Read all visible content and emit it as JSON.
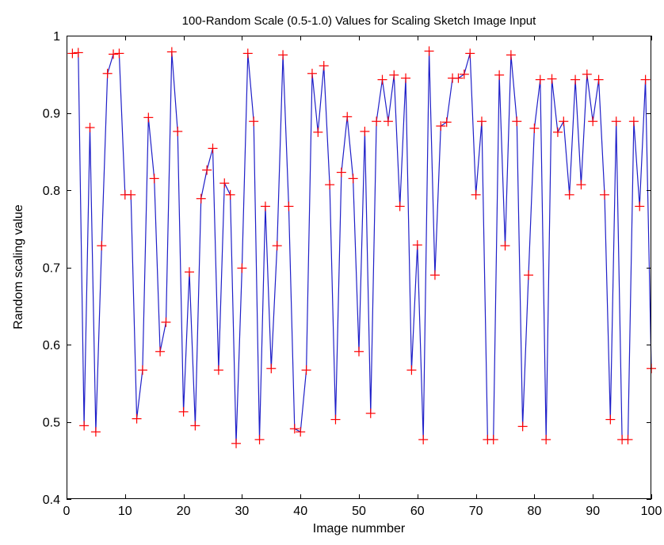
{
  "chart_data": {
    "type": "line",
    "title": "100-Random Scale (0.5-1.0) Values for Scaling  Sketch Image Input",
    "xlabel": "Image nummber",
    "ylabel": "Random scaling value",
    "xlim": [
      0,
      100
    ],
    "ylim": [
      0.4,
      1.0
    ],
    "xticks": [
      0,
      10,
      20,
      30,
      40,
      50,
      60,
      70,
      80,
      90,
      100
    ],
    "yticks": [
      0.4,
      0.5,
      0.6,
      0.7,
      0.8,
      0.9,
      1.0
    ],
    "xtick_labels": [
      "0",
      "10",
      "20",
      "30",
      "40",
      "50",
      "60",
      "70",
      "80",
      "90",
      "100"
    ],
    "ytick_labels": [
      "0.4",
      "0.5",
      "0.6",
      "0.7",
      "0.8",
      "0.9",
      "1"
    ],
    "grid": false,
    "series": [
      {
        "line_color": "#1f1fc8",
        "marker": "+",
        "marker_color": "#ff0000",
        "x": [
          1,
          2,
          3,
          4,
          5,
          6,
          7,
          8,
          9,
          10,
          11,
          12,
          13,
          14,
          15,
          16,
          17,
          18,
          19,
          20,
          21,
          22,
          23,
          24,
          25,
          26,
          27,
          28,
          29,
          30,
          31,
          32,
          33,
          34,
          35,
          36,
          37,
          38,
          39,
          40,
          41,
          42,
          43,
          44,
          45,
          46,
          47,
          48,
          49,
          50,
          51,
          52,
          53,
          54,
          55,
          56,
          57,
          58,
          59,
          60,
          61,
          62,
          63,
          64,
          65,
          66,
          67,
          68,
          69,
          70,
          71,
          72,
          73,
          74,
          75,
          76,
          77,
          78,
          79,
          80,
          81,
          82,
          83,
          84,
          85,
          86,
          87,
          88,
          89,
          90,
          91,
          92,
          93,
          94,
          95,
          96,
          97,
          98,
          99,
          100
        ],
        "values": [
          0.977,
          0.978,
          0.495,
          0.881,
          0.487,
          0.728,
          0.951,
          0.976,
          0.977,
          0.794,
          0.794,
          0.504,
          0.567,
          0.894,
          0.815,
          0.591,
          0.629,
          0.979,
          0.876,
          0.513,
          0.694,
          0.495,
          0.789,
          0.826,
          0.854,
          0.567,
          0.809,
          0.794,
          0.472,
          0.699,
          0.977,
          0.889,
          0.477,
          0.779,
          0.569,
          0.728,
          0.975,
          0.779,
          0.491,
          0.487,
          0.567,
          0.951,
          0.875,
          0.961,
          0.807,
          0.503,
          0.823,
          0.895,
          0.815,
          0.591,
          0.876,
          0.511,
          0.889,
          0.943,
          0.889,
          0.949,
          0.779,
          0.945,
          0.567,
          0.729,
          0.477,
          0.98,
          0.69,
          0.883,
          0.888,
          0.945,
          0.945,
          0.95,
          0.977,
          0.794,
          0.889,
          0.477,
          0.477,
          0.949,
          0.728,
          0.975,
          0.889,
          0.494,
          0.69,
          0.88,
          0.943,
          0.477,
          0.944,
          0.875,
          0.889,
          0.794,
          0.943,
          0.807,
          0.95,
          0.889,
          0.943,
          0.794,
          0.503,
          0.889,
          0.477,
          0.477,
          0.889,
          0.779,
          0.943,
          0.569
        ]
      }
    ]
  }
}
